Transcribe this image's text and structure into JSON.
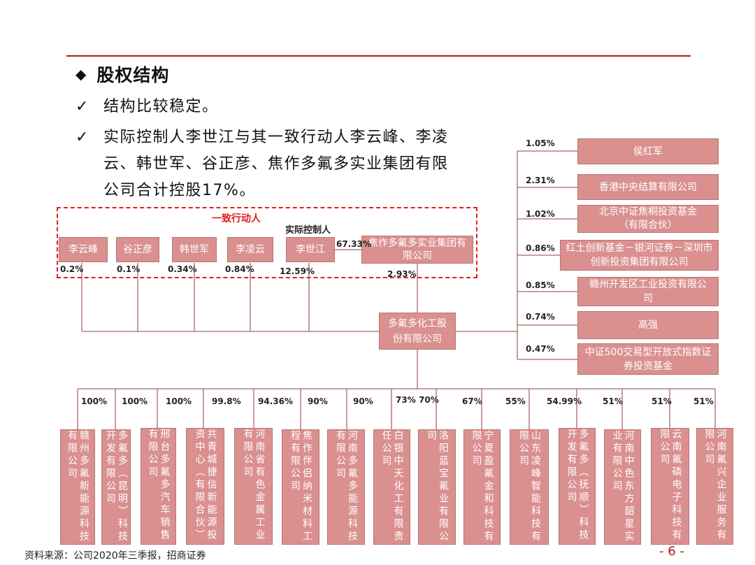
{
  "header": {
    "title": "股权结构"
  },
  "bullets": [
    {
      "text": "结构比较稳定。"
    },
    {
      "lines": [
        "实际控制人李世江与其一致行动人李云峰、李凌",
        "云、韩世军、谷正彦、焦作多氟多实业集团有限",
        "公司合计控股17%。"
      ]
    }
  ],
  "group": {
    "label": "一致行动人",
    "controller_label": "实际控制人"
  },
  "persons": [
    {
      "name": "李云峰",
      "pct": "0.2%"
    },
    {
      "name": "谷正彦",
      "pct": "0.1%"
    },
    {
      "name": "韩世军",
      "pct": "0.34%"
    },
    {
      "name": "李凌云",
      "pct": "0.84%"
    },
    {
      "name": "李世江",
      "pct": "12.59%"
    }
  ],
  "group_company": {
    "name": "焦作多氟多实业集团有限公司",
    "own_pct": "67.33%",
    "stake_pct": "2.93%"
  },
  "center": {
    "name": "多氟多化工股份有限公司"
  },
  "shareholders": [
    {
      "pct": "1.05%",
      "name": "侯红军"
    },
    {
      "pct": "2.31%",
      "name": "香港中央结算有限公司"
    },
    {
      "pct": "1.02%",
      "name": "北京中证焦桐投资基金（有限合伙）"
    },
    {
      "pct": "0.86%",
      "name": "红土创新基金－银河证券－深圳市创新投资集团有限公司"
    },
    {
      "pct": "0.85%",
      "name": "赣州开发区工业投资有限公司"
    },
    {
      "pct": "0.74%",
      "name": "高强"
    },
    {
      "pct": "0.47%",
      "name": "中证500交易型开放式指数证券投资基金"
    }
  ],
  "subsidiaries": [
    {
      "pct": "100%",
      "name": "赣州多氟新能源科技有限公司"
    },
    {
      "pct": "100%",
      "name": "多氟多（昆明）科技开发有限公司"
    },
    {
      "pct": "100%",
      "name": "邢台多氟多汽车销售有限公司"
    },
    {
      "pct": "99.8%",
      "name": "共青城捷信新能源投资中心（有限合伙）"
    },
    {
      "pct": "94.36%",
      "name": "河南省有色金属工业有限公司"
    },
    {
      "pct": "90%",
      "name": "焦作伴侣纳米材料工程有限公司"
    },
    {
      "pct": "90%",
      "name": "河南多氟多能源科技有限公司"
    },
    {
      "pct": "73%",
      "name": "白银中天化工有限责任公司"
    },
    {
      "pct": "70%",
      "name": "洛阳蓝宝氟业有限公司"
    },
    {
      "pct": "67%",
      "name": "宁夏盈氟金和科技有限公司"
    },
    {
      "pct": "55%",
      "name": "山东凌峰智能科技有限公司"
    },
    {
      "pct": "54.99%",
      "name": "多氟多（抚顺）科技开发有限公司"
    },
    {
      "pct": "51%",
      "name": "河南中色东方韶星实业有限公司"
    },
    {
      "pct": "51%",
      "name": "云南氟磷电子科技有限公司"
    },
    {
      "pct": "51%",
      "name": "河南氟兴企业服务有限公司"
    }
  ],
  "footer": {
    "source": "资料来源：公司2020年三季报，招商证券",
    "page": "- 6 -"
  }
}
